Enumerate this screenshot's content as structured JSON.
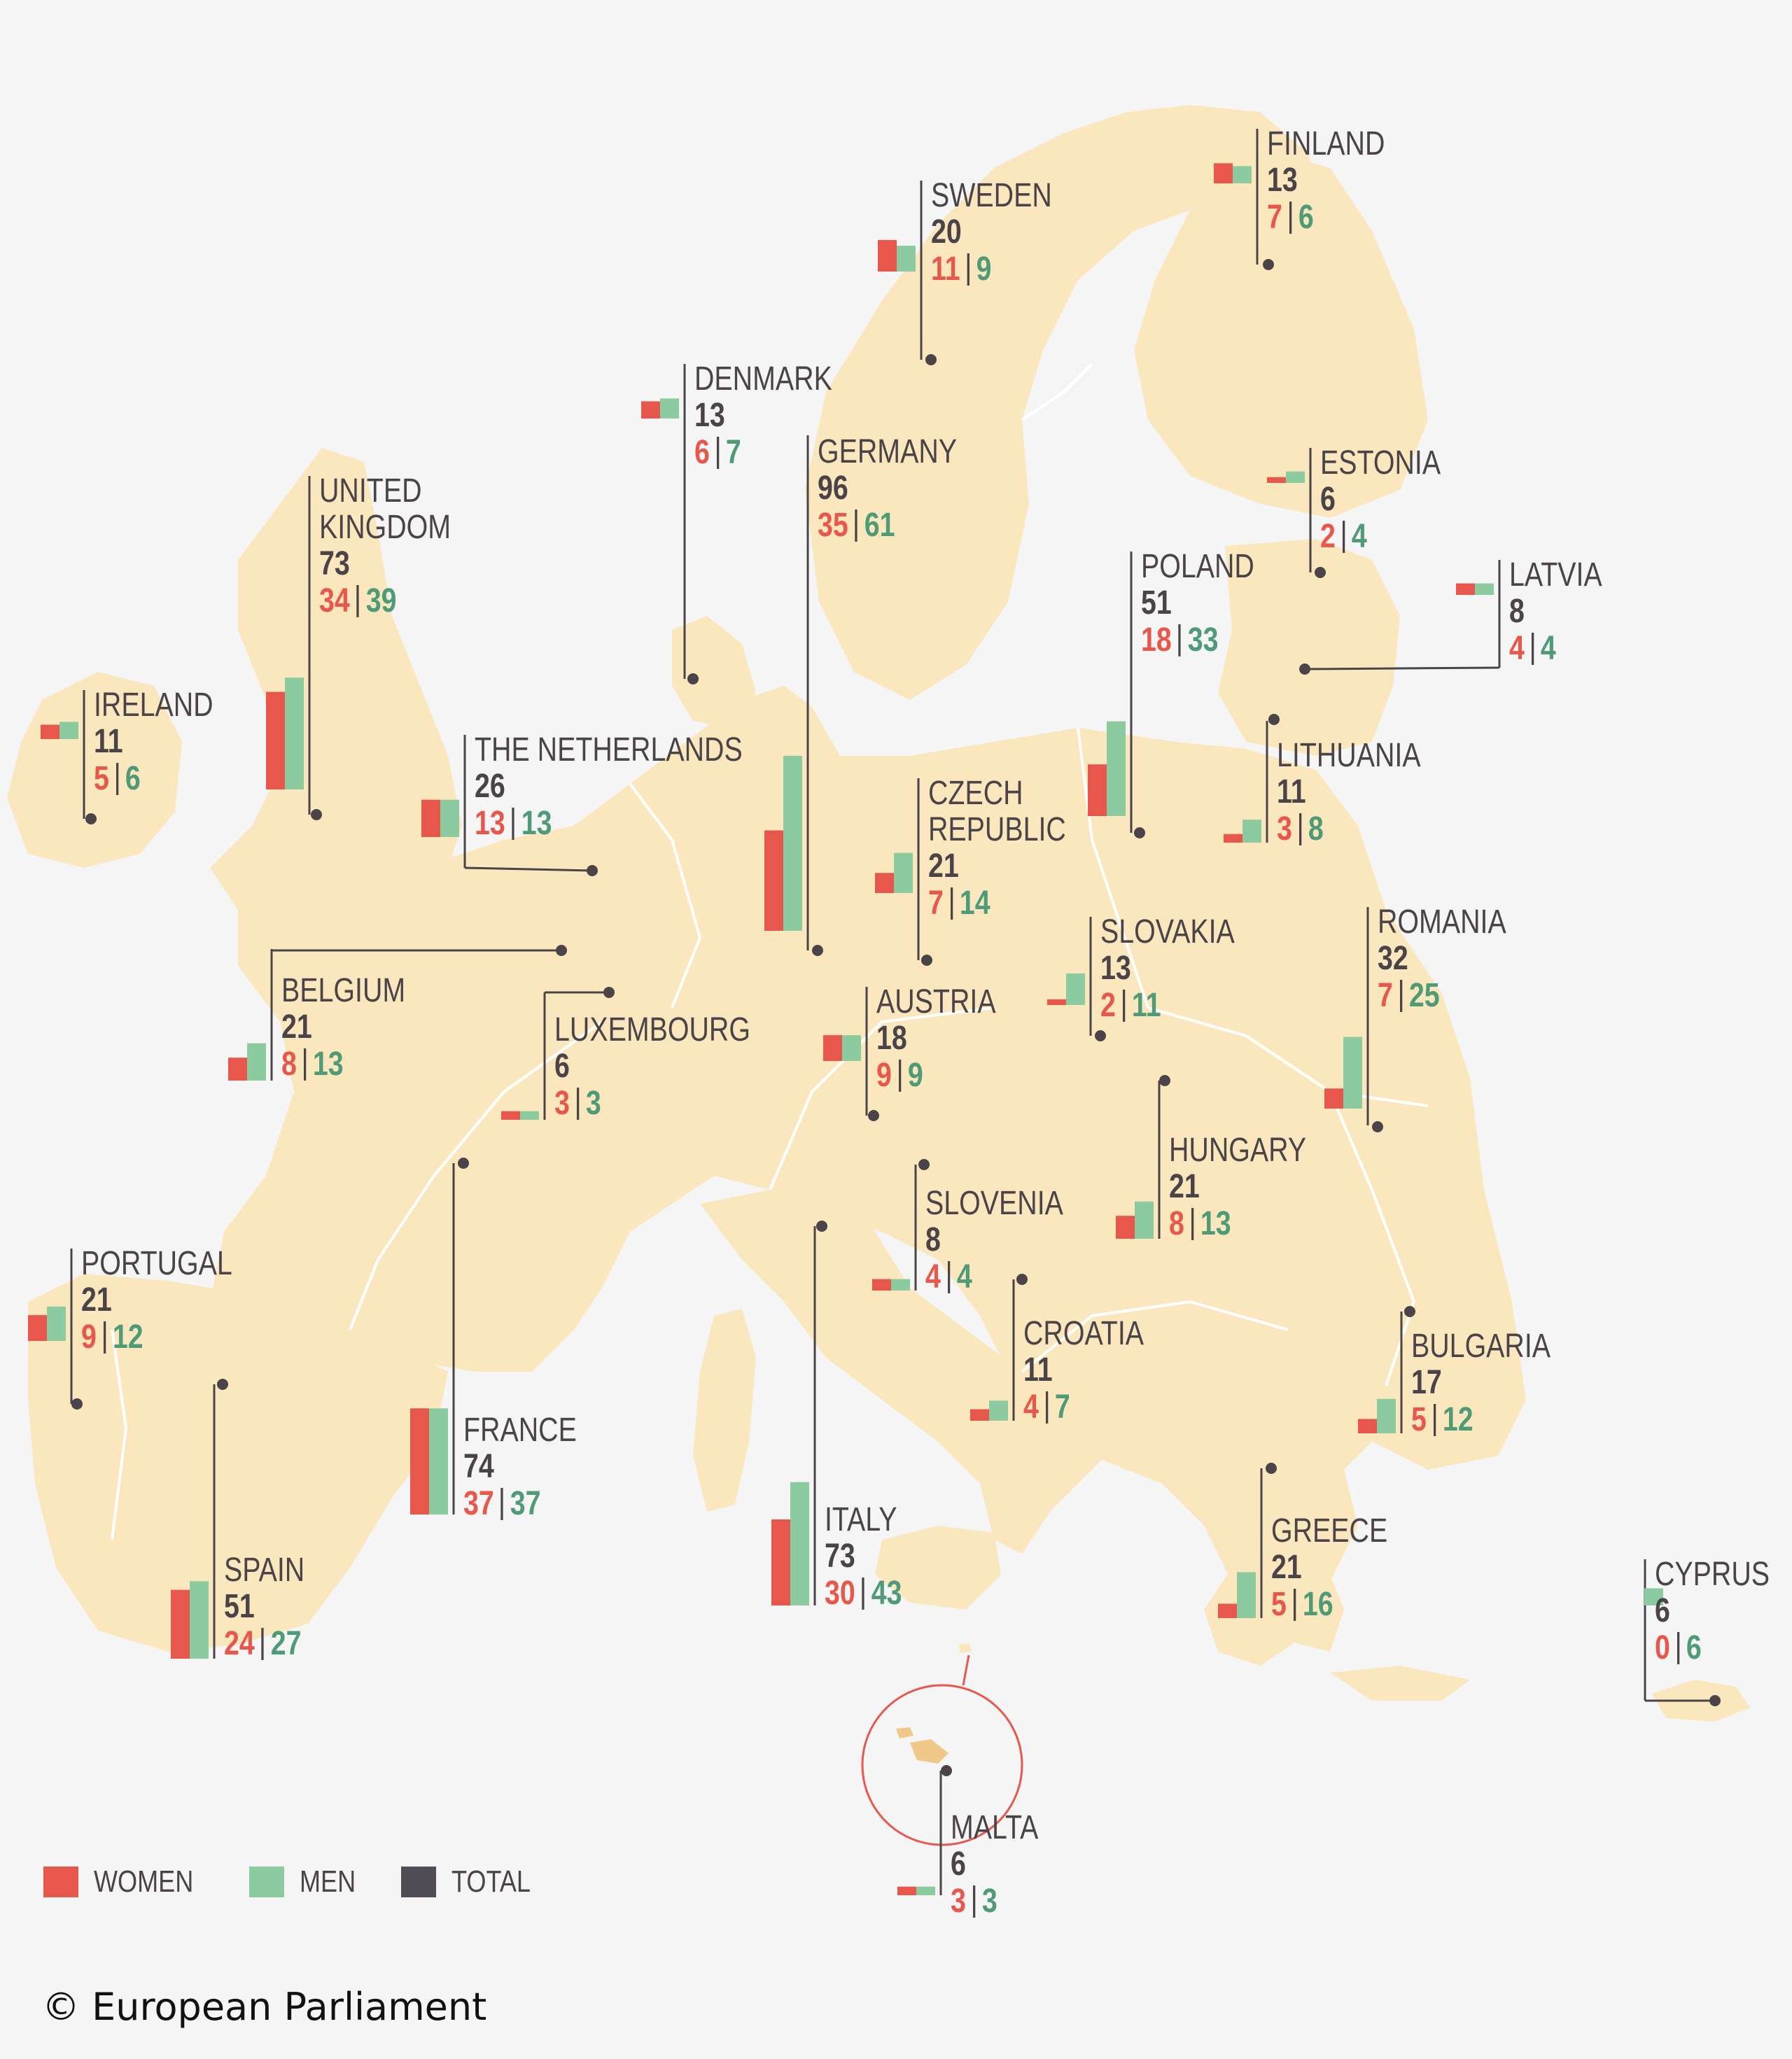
{
  "colors": {
    "women": "#e8574b",
    "men": "#8ccba0",
    "total": "#514b53",
    "land": "#fbe7bd",
    "border": "#ffffff",
    "leader": "#4a4448",
    "background": "#f5f5f5"
  },
  "legend": [
    {
      "key": "women",
      "label": "WOMEN"
    },
    {
      "key": "men",
      "label": "MEN"
    },
    {
      "key": "total",
      "label": "TOTAL"
    }
  ],
  "copyright": "© European Parliament",
  "countries": [
    {
      "id": "finland",
      "name_lines": [
        "FINLAND"
      ],
      "total": "13",
      "women": "7",
      "men": "6"
    },
    {
      "id": "sweden",
      "name_lines": [
        "SWEDEN"
      ],
      "total": "20",
      "women": "11",
      "men": "9"
    },
    {
      "id": "denmark",
      "name_lines": [
        "DENMARK"
      ],
      "total": "13",
      "women": "6",
      "men": "7"
    },
    {
      "id": "germany",
      "name_lines": [
        "GERMANY"
      ],
      "total": "96",
      "women": "35",
      "men": "61"
    },
    {
      "id": "united-kingdom",
      "name_lines": [
        "UNITED",
        "KINGDOM"
      ],
      "total": "73",
      "women": "34",
      "men": "39"
    },
    {
      "id": "estonia",
      "name_lines": [
        "ESTONIA"
      ],
      "total": "6",
      "women": "2",
      "men": "4"
    },
    {
      "id": "poland",
      "name_lines": [
        "POLAND"
      ],
      "total": "51",
      "women": "18",
      "men": "33"
    },
    {
      "id": "latvia",
      "name_lines": [
        "LATVIA"
      ],
      "total": "8",
      "women": "4",
      "men": "4"
    },
    {
      "id": "ireland",
      "name_lines": [
        "IRELAND"
      ],
      "total": "11",
      "women": "5",
      "men": "6"
    },
    {
      "id": "netherlands",
      "name_lines": [
        "THE NETHERLANDS"
      ],
      "total": "26",
      "women": "13",
      "men": "13"
    },
    {
      "id": "lithuania",
      "name_lines": [
        "LITHUANIA"
      ],
      "total": "11",
      "women": "3",
      "men": "8"
    },
    {
      "id": "czech-republic",
      "name_lines": [
        "CZECH",
        "REPUBLIC"
      ],
      "total": "21",
      "women": "7",
      "men": "14"
    },
    {
      "id": "slovakia",
      "name_lines": [
        "SLOVAKIA"
      ],
      "total": "13",
      "women": "2",
      "men": "11"
    },
    {
      "id": "romania",
      "name_lines": [
        "ROMANIA"
      ],
      "total": "32",
      "women": "7",
      "men": "25"
    },
    {
      "id": "belgium",
      "name_lines": [
        "BELGIUM"
      ],
      "total": "21",
      "women": "8",
      "men": "13"
    },
    {
      "id": "luxembourg",
      "name_lines": [
        "LUXEMBOURG"
      ],
      "total": "6",
      "women": "3",
      "men": "3"
    },
    {
      "id": "austria",
      "name_lines": [
        "AUSTRIA"
      ],
      "total": "18",
      "women": "9",
      "men": "9"
    },
    {
      "id": "hungary",
      "name_lines": [
        "HUNGARY"
      ],
      "total": "21",
      "women": "8",
      "men": "13"
    },
    {
      "id": "slovenia",
      "name_lines": [
        "SLOVENIA"
      ],
      "total": "8",
      "women": "4",
      "men": "4"
    },
    {
      "id": "portugal",
      "name_lines": [
        "PORTUGAL"
      ],
      "total": "21",
      "women": "9",
      "men": "12"
    },
    {
      "id": "croatia",
      "name_lines": [
        "CROATIA"
      ],
      "total": "11",
      "women": "4",
      "men": "7"
    },
    {
      "id": "bulgaria",
      "name_lines": [
        "BULGARIA"
      ],
      "total": "17",
      "women": "5",
      "men": "12"
    },
    {
      "id": "france",
      "name_lines": [
        "FRANCE"
      ],
      "total": "74",
      "women": "37",
      "men": "37"
    },
    {
      "id": "greece",
      "name_lines": [
        "GREECE"
      ],
      "total": "21",
      "women": "5",
      "men": "16"
    },
    {
      "id": "italy",
      "name_lines": [
        "ITALY"
      ],
      "total": "73",
      "women": "30",
      "men": "43"
    },
    {
      "id": "spain",
      "name_lines": [
        "SPAIN"
      ],
      "total": "51",
      "women": "24",
      "men": "27"
    },
    {
      "id": "cyprus",
      "name_lines": [
        "CYPRUS"
      ],
      "total": "6",
      "women": "0",
      "men": "6"
    },
    {
      "id": "malta",
      "name_lines": [
        "MALTA"
      ],
      "total": "6",
      "women": "3",
      "men": "3"
    }
  ]
}
